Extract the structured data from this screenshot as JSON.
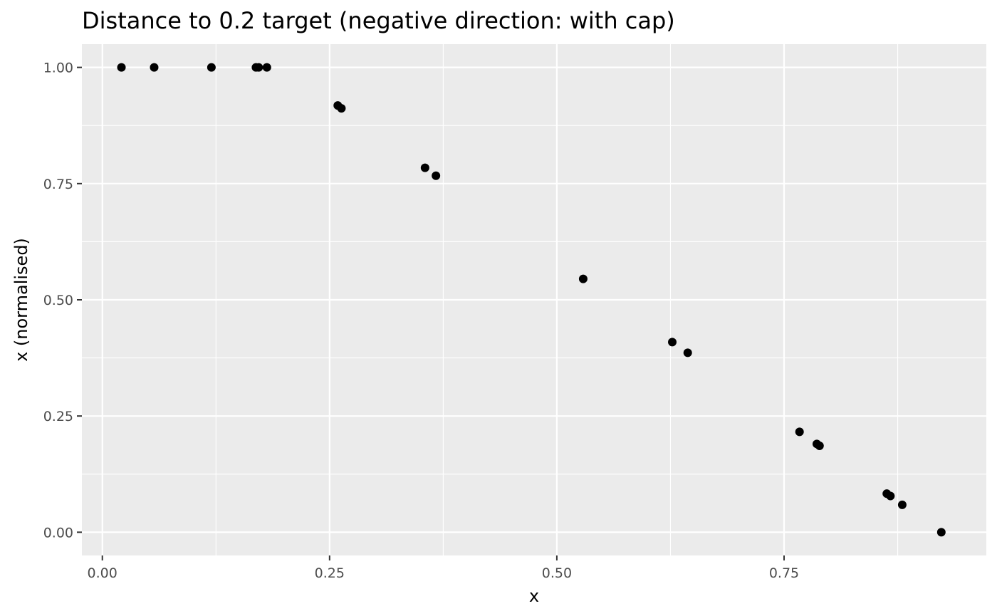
{
  "chart_data": {
    "type": "scatter",
    "title": "Distance to 0.2 target (negative direction: with cap)",
    "xlabel": "x",
    "ylabel": "x (normalised)",
    "xlim": [
      -0.0225,
      0.9725
    ],
    "ylim": [
      -0.05,
      1.05
    ],
    "x_ticks": [
      0.0,
      0.25,
      0.5,
      0.75
    ],
    "x_tick_labels": [
      "0.00",
      "0.25",
      "0.50",
      "0.75"
    ],
    "x_minor_ticks": [
      0.125,
      0.375,
      0.625,
      0.875
    ],
    "y_ticks": [
      0.0,
      0.25,
      0.5,
      0.75,
      1.0
    ],
    "y_tick_labels": [
      "0.00",
      "0.25",
      "0.50",
      "0.75",
      "1.00"
    ],
    "y_minor_ticks": [
      0.125,
      0.375,
      0.625,
      0.875
    ],
    "grid": true,
    "point_color": "#000000",
    "panel_color": "#ebebeb",
    "points": [
      {
        "x": 0.021,
        "y": 1.0
      },
      {
        "x": 0.057,
        "y": 1.0
      },
      {
        "x": 0.12,
        "y": 1.0
      },
      {
        "x": 0.169,
        "y": 1.0
      },
      {
        "x": 0.172,
        "y": 1.0
      },
      {
        "x": 0.181,
        "y": 1.0
      },
      {
        "x": 0.259,
        "y": 0.918
      },
      {
        "x": 0.263,
        "y": 0.912
      },
      {
        "x": 0.355,
        "y": 0.784
      },
      {
        "x": 0.367,
        "y": 0.767
      },
      {
        "x": 0.529,
        "y": 0.545
      },
      {
        "x": 0.627,
        "y": 0.409
      },
      {
        "x": 0.644,
        "y": 0.386
      },
      {
        "x": 0.767,
        "y": 0.216
      },
      {
        "x": 0.786,
        "y": 0.19
      },
      {
        "x": 0.789,
        "y": 0.186
      },
      {
        "x": 0.863,
        "y": 0.083
      },
      {
        "x": 0.867,
        "y": 0.078
      },
      {
        "x": 0.88,
        "y": 0.059
      },
      {
        "x": 0.923,
        "y": 0.0
      }
    ]
  }
}
